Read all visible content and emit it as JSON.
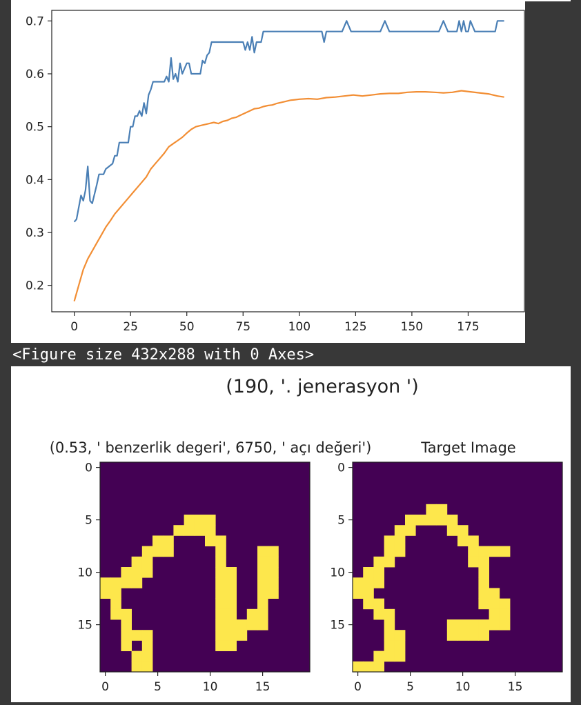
{
  "output_text": "<Figure size 432x288 with 0 Axes>",
  "colors": {
    "series_1": "#4a7fb5",
    "series_2": "#f28e34",
    "heatmap_low": "#440154",
    "heatmap_high": "#fde74c",
    "page_background": "#383838"
  },
  "chart_data": [
    {
      "type": "line",
      "xlim": [
        -10,
        200
      ],
      "ylim": [
        0.15,
        0.72
      ],
      "grid": false,
      "x_ticks": [
        0,
        25,
        50,
        75,
        100,
        125,
        150,
        175
      ],
      "y_ticks": [
        0.2,
        0.3,
        0.4,
        0.5,
        0.6,
        0.7
      ],
      "x_tick_labels": [
        "0",
        "25",
        "50",
        "75",
        "100",
        "125",
        "150",
        "175"
      ],
      "y_tick_labels": [
        "0.2",
        "0.3",
        "0.4",
        "0.5",
        "0.6",
        "0.7"
      ],
      "series": [
        {
          "color": "#4a7fb5",
          "points": [
            [
              0,
              0.32
            ],
            [
              1,
              0.325
            ],
            [
              3,
              0.37
            ],
            [
              4,
              0.36
            ],
            [
              5,
              0.38
            ],
            [
              6,
              0.425
            ],
            [
              7,
              0.36
            ],
            [
              8,
              0.355
            ],
            [
              10,
              0.39
            ],
            [
              11,
              0.41
            ],
            [
              13,
              0.41
            ],
            [
              14,
              0.42
            ],
            [
              17,
              0.43
            ],
            [
              18,
              0.445
            ],
            [
              19,
              0.445
            ],
            [
              20,
              0.47
            ],
            [
              24,
              0.47
            ],
            [
              25,
              0.5
            ],
            [
              26,
              0.5
            ],
            [
              27,
              0.52
            ],
            [
              28,
              0.52
            ],
            [
              29,
              0.53
            ],
            [
              30,
              0.52
            ],
            [
              31,
              0.545
            ],
            [
              32,
              0.525
            ],
            [
              33,
              0.56
            ],
            [
              34,
              0.57
            ],
            [
              35,
              0.585
            ],
            [
              40,
              0.585
            ],
            [
              41,
              0.595
            ],
            [
              42,
              0.585
            ],
            [
              43,
              0.63
            ],
            [
              44,
              0.59
            ],
            [
              45,
              0.6
            ],
            [
              46,
              0.585
            ],
            [
              47,
              0.62
            ],
            [
              48,
              0.6
            ],
            [
              50,
              0.62
            ],
            [
              51,
              0.62
            ],
            [
              52,
              0.6
            ],
            [
              56,
              0.6
            ],
            [
              57,
              0.625
            ],
            [
              58,
              0.62
            ],
            [
              59,
              0.635
            ],
            [
              60,
              0.64
            ],
            [
              61,
              0.66
            ],
            [
              62,
              0.66
            ],
            [
              63,
              0.66
            ],
            [
              75,
              0.66
            ],
            [
              76,
              0.645
            ],
            [
              77,
              0.66
            ],
            [
              78,
              0.645
            ],
            [
              79,
              0.67
            ],
            [
              80,
              0.64
            ],
            [
              81,
              0.66
            ],
            [
              83,
              0.66
            ],
            [
              84,
              0.68
            ],
            [
              110,
              0.68
            ],
            [
              111,
              0.66
            ],
            [
              112,
              0.68
            ],
            [
              119,
              0.68
            ],
            [
              121,
              0.7
            ],
            [
              123,
              0.68
            ],
            [
              136,
              0.68
            ],
            [
              138,
              0.7
            ],
            [
              140,
              0.68
            ],
            [
              162,
              0.68
            ],
            [
              164,
              0.7
            ],
            [
              166,
              0.68
            ],
            [
              170,
              0.68
            ],
            [
              171,
              0.7
            ],
            [
              172,
              0.68
            ],
            [
              173,
              0.7
            ],
            [
              174,
              0.68
            ],
            [
              175,
              0.68
            ],
            [
              176,
              0.7
            ],
            [
              178,
              0.68
            ],
            [
              187,
              0.68
            ],
            [
              188,
              0.7
            ],
            [
              191,
              0.7
            ]
          ]
        },
        {
          "color": "#f28e34",
          "points": [
            [
              0,
              0.17
            ],
            [
              2,
              0.2
            ],
            [
              4,
              0.23
            ],
            [
              6,
              0.25
            ],
            [
              8,
              0.265
            ],
            [
              10,
              0.28
            ],
            [
              12,
              0.295
            ],
            [
              14,
              0.31
            ],
            [
              16,
              0.322
            ],
            [
              18,
              0.335
            ],
            [
              20,
              0.345
            ],
            [
              22,
              0.355
            ],
            [
              24,
              0.365
            ],
            [
              26,
              0.375
            ],
            [
              28,
              0.385
            ],
            [
              30,
              0.395
            ],
            [
              32,
              0.405
            ],
            [
              34,
              0.42
            ],
            [
              36,
              0.43
            ],
            [
              38,
              0.44
            ],
            [
              40,
              0.45
            ],
            [
              42,
              0.462
            ],
            [
              44,
              0.468
            ],
            [
              46,
              0.474
            ],
            [
              48,
              0.48
            ],
            [
              50,
              0.488
            ],
            [
              52,
              0.495
            ],
            [
              54,
              0.5
            ],
            [
              56,
              0.502
            ],
            [
              58,
              0.504
            ],
            [
              60,
              0.506
            ],
            [
              62,
              0.508
            ],
            [
              64,
              0.506
            ],
            [
              66,
              0.51
            ],
            [
              68,
              0.512
            ],
            [
              70,
              0.516
            ],
            [
              72,
              0.518
            ],
            [
              74,
              0.522
            ],
            [
              76,
              0.526
            ],
            [
              78,
              0.53
            ],
            [
              80,
              0.534
            ],
            [
              82,
              0.535
            ],
            [
              84,
              0.538
            ],
            [
              86,
              0.54
            ],
            [
              88,
              0.541
            ],
            [
              90,
              0.544
            ],
            [
              92,
              0.546
            ],
            [
              94,
              0.548
            ],
            [
              96,
              0.55
            ],
            [
              98,
              0.551
            ],
            [
              100,
              0.552
            ],
            [
              104,
              0.553
            ],
            [
              108,
              0.552
            ],
            [
              112,
              0.555
            ],
            [
              116,
              0.556
            ],
            [
              120,
              0.558
            ],
            [
              124,
              0.56
            ],
            [
              128,
              0.558
            ],
            [
              132,
              0.56
            ],
            [
              136,
              0.562
            ],
            [
              140,
              0.563
            ],
            [
              144,
              0.563
            ],
            [
              148,
              0.565
            ],
            [
              152,
              0.566
            ],
            [
              156,
              0.566
            ],
            [
              160,
              0.565
            ],
            [
              164,
              0.564
            ],
            [
              168,
              0.565
            ],
            [
              172,
              0.568
            ],
            [
              176,
              0.566
            ],
            [
              180,
              0.564
            ],
            [
              184,
              0.562
            ],
            [
              188,
              0.558
            ],
            [
              191,
              0.556
            ]
          ]
        }
      ]
    },
    {
      "type": "heatmap",
      "suptitle": "(190, '. jenerasyon ')",
      "panels": [
        {
          "title": "(0.53, ' benzerlik degeri', 6750, ' açı değeri')",
          "rows": 20,
          "cols": 20,
          "x_ticks": [
            0,
            5,
            10,
            15
          ],
          "y_ticks": [
            0,
            5,
            10,
            15
          ],
          "x_tick_labels": [
            "0",
            "5",
            "10",
            "15"
          ],
          "y_tick_labels": [
            "0",
            "5",
            "10",
            "15"
          ],
          "grid": [
            "00000000000000000000",
            "00000000000000000000",
            "00000000000000000000",
            "00000000000000000000",
            "00000000000000000000",
            "00000000111000000000",
            "00000001111000000000",
            "00000110001100000000",
            "00001110000100011000",
            "00011000000100011000",
            "00111000000110011000",
            "11110000000110011000",
            "11000000000110011000",
            "01000000000110010000",
            "01100000000110110000",
            "00100000000111110000",
            "00111000000111000000",
            "00101000000110000000",
            "00011000000000000000",
            "00011000000000000000"
          ]
        },
        {
          "title": "Target Image",
          "rows": 20,
          "cols": 20,
          "x_ticks": [
            0,
            5,
            10,
            15
          ],
          "y_ticks": [
            0,
            5,
            10,
            15
          ],
          "x_tick_labels": [
            "0",
            "5",
            "10",
            "15"
          ],
          "y_tick_labels": [
            "0",
            "5",
            "10",
            "15"
          ],
          "grid": [
            "00000000000000000000",
            "00000000000000000000",
            "00000000000000000000",
            "00000000000000000000",
            "00000001100000000000",
            "00000111110000000000",
            "00001100011000000000",
            "00011000001100000000",
            "00011000000111100000",
            "00110000000110000000",
            "01100000000010000000",
            "11100000000010000000",
            "11000000000011000000",
            "01100000000011100000",
            "00110000000001100000",
            "00010000011111100000",
            "00011000011110000000",
            "00011000000000000000",
            "00111000000000000000",
            "11100000000000000000"
          ]
        }
      ]
    }
  ]
}
